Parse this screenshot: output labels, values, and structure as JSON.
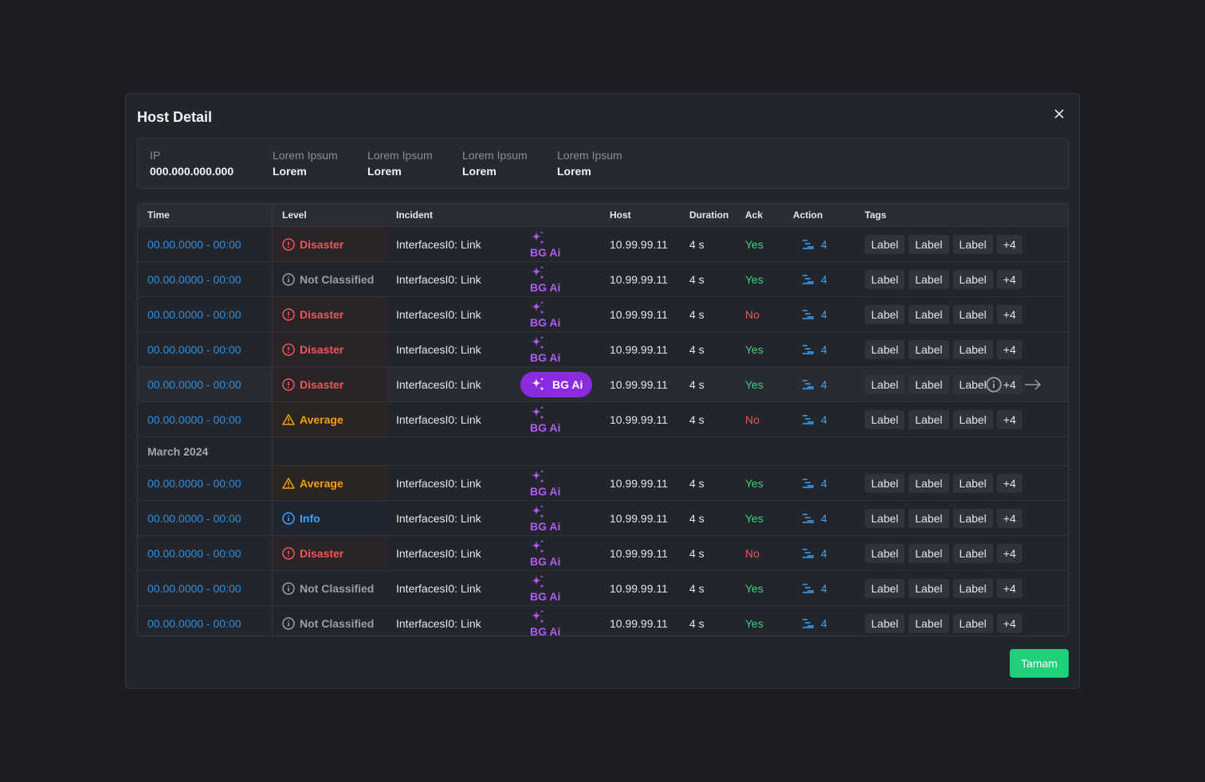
{
  "dialog": {
    "title": "Host Detail",
    "summary": [
      {
        "label": "IP",
        "value": "000.000.000.000"
      },
      {
        "label": "Lorem Ipsum",
        "value": "Lorem"
      },
      {
        "label": "Lorem Ipsum",
        "value": "Lorem"
      },
      {
        "label": "Lorem Ipsum",
        "value": "Lorem"
      },
      {
        "label": "Lorem Ipsum",
        "value": "Lorem"
      }
    ],
    "table": {
      "columns": [
        "Time",
        "Level",
        "Incident",
        "Host",
        "Duration",
        "Ack",
        "Action",
        "Tags"
      ],
      "levels": {
        "Disaster": {
          "color": "#f2555a",
          "bg": "#2a2327",
          "icon": "error"
        },
        "Not Classified": {
          "color": "#9a9ea6",
          "bg": "#22252b",
          "icon": "info"
        },
        "Average": {
          "color": "#f59e0b",
          "bg": "#2a2523",
          "icon": "warning"
        },
        "Info": {
          "color": "#3ea2f5",
          "bg": "#1f2631",
          "icon": "info"
        }
      },
      "ack_colors": {
        "Yes": "#3ecf7e",
        "No": "#f2555a"
      },
      "sections": [
        {
          "rows": [
            {
              "time": "00.00.0000 - 00:00",
              "level": "Disaster",
              "incident": "InterfacesI0: Link",
              "ai": "BG Ai",
              "host": "10.99.99.11",
              "duration": "4 s",
              "ack": "Yes",
              "action": 4,
              "tags": [
                "Label",
                "Label",
                "Label",
                "+4"
              ]
            },
            {
              "time": "00.00.0000 - 00:00",
              "level": "Not Classified",
              "incident": "InterfacesI0: Link",
              "ai": "BG Ai",
              "host": "10.99.99.11",
              "duration": "4 s",
              "ack": "Yes",
              "action": 4,
              "tags": [
                "Label",
                "Label",
                "Label",
                "+4"
              ]
            },
            {
              "time": "00.00.0000 - 00:00",
              "level": "Disaster",
              "incident": "InterfacesI0: Link",
              "ai": "BG Ai",
              "host": "10.99.99.11",
              "duration": "4 s",
              "ack": "No",
              "action": 4,
              "tags": [
                "Label",
                "Label",
                "Label",
                "+4"
              ]
            },
            {
              "time": "00.00.0000 - 00:00",
              "level": "Disaster",
              "incident": "InterfacesI0: Link",
              "ai": "BG Ai",
              "host": "10.99.99.11",
              "duration": "4 s",
              "ack": "Yes",
              "action": 4,
              "tags": [
                "Label",
                "Label",
                "Label",
                "+4"
              ]
            },
            {
              "time": "00.00.0000 - 00:00",
              "level": "Disaster",
              "incident": "InterfacesI0: Link",
              "ai": "BG Ai",
              "host": "10.99.99.11",
              "duration": "4 s",
              "ack": "Yes",
              "action": 4,
              "tags": [
                "Label",
                "Label",
                "Label",
                "+4"
              ],
              "active": true
            },
            {
              "time": "00.00.0000 - 00:00",
              "level": "Average",
              "incident": "InterfacesI0: Link",
              "ai": "BG Ai",
              "host": "10.99.99.11",
              "duration": "4 s",
              "ack": "No",
              "action": 4,
              "tags": [
                "Label",
                "Label",
                "Label",
                "+4"
              ]
            }
          ]
        },
        {
          "heading": "March 2024",
          "rows": [
            {
              "time": "00.00.0000 - 00:00",
              "level": "Average",
              "incident": "InterfacesI0: Link",
              "ai": "BG Ai",
              "host": "10.99.99.11",
              "duration": "4 s",
              "ack": "Yes",
              "action": 4,
              "tags": [
                "Label",
                "Label",
                "Label",
                "+4"
              ]
            },
            {
              "time": "00.00.0000 - 00:00",
              "level": "Info",
              "incident": "InterfacesI0: Link",
              "ai": "BG Ai",
              "host": "10.99.99.11",
              "duration": "4 s",
              "ack": "Yes",
              "action": 4,
              "tags": [
                "Label",
                "Label",
                "Label",
                "+4"
              ]
            },
            {
              "time": "00.00.0000 - 00:00",
              "level": "Disaster",
              "incident": "InterfacesI0: Link",
              "ai": "BG Ai",
              "host": "10.99.99.11",
              "duration": "4 s",
              "ack": "No",
              "action": 4,
              "tags": [
                "Label",
                "Label",
                "Label",
                "+4"
              ]
            },
            {
              "time": "00.00.0000 - 00:00",
              "level": "Not Classified",
              "incident": "InterfacesI0: Link",
              "ai": "BG Ai",
              "host": "10.99.99.11",
              "duration": "4 s",
              "ack": "Yes",
              "action": 4,
              "tags": [
                "Label",
                "Label",
                "Label",
                "+4"
              ]
            },
            {
              "time": "00.00.0000 - 00:00",
              "level": "Not Classified",
              "incident": "InterfacesI0: Link",
              "ai": "BG Ai",
              "host": "10.99.99.11",
              "duration": "4 s",
              "ack": "Yes",
              "action": 4,
              "tags": [
                "Label",
                "Label",
                "Label",
                "+4"
              ]
            }
          ]
        }
      ]
    },
    "button": "Tamam"
  }
}
